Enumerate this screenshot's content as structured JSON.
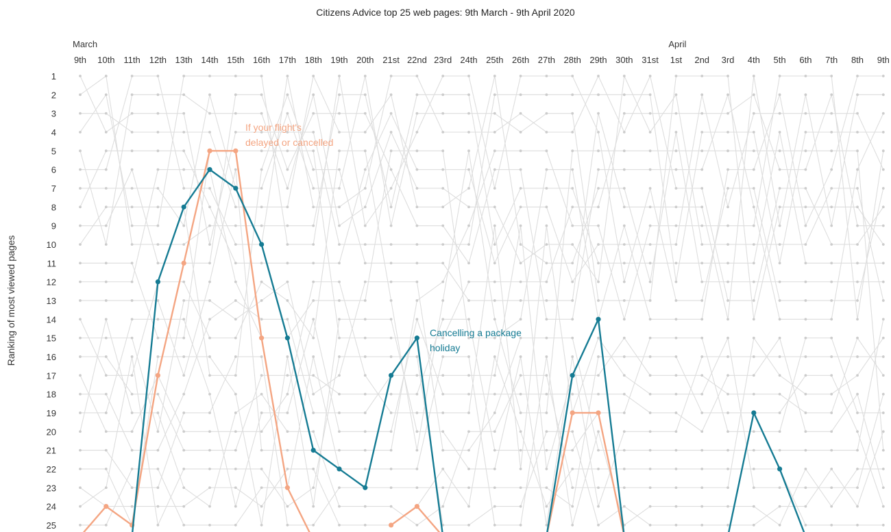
{
  "chart_data": {
    "type": "line",
    "title": "Citizens Advice top 25 web pages: 9th March - 9th April 2020",
    "ylabel": "Ranking of most viewed pages",
    "months": [
      {
        "label": "March",
        "start_index": 0
      },
      {
        "label": "April",
        "start_index": 23
      }
    ],
    "categories": [
      "9th",
      "10th",
      "11th",
      "12th",
      "13th",
      "14th",
      "15th",
      "16th",
      "17th",
      "18th",
      "19th",
      "20th",
      "21st",
      "22nd",
      "23rd",
      "24th",
      "25th",
      "26th",
      "27th",
      "28th",
      "29th",
      "30th",
      "31st",
      "1st",
      "2nd",
      "3rd",
      "4th",
      "5th",
      "6th",
      "7th",
      "8th",
      "9th"
    ],
    "y_ticks": [
      "1",
      "2",
      "3",
      "4",
      "5",
      "6",
      "7",
      "8",
      "9",
      "10",
      "11",
      "12",
      "13",
      "14",
      "15",
      "16",
      "17",
      "18",
      "19",
      "20",
      "21",
      "22",
      "23",
      "24",
      "25"
    ],
    "ylim": [
      1,
      25
    ],
    "y_inverted": true,
    "colors": {
      "background_line": "#dddddd",
      "background_point": "#cccccc",
      "flight": "#f4a582",
      "package": "#157b93"
    },
    "highlight_series": [
      {
        "name": "If your flight's delayed or cancelled",
        "label_lines": [
          "If your flight's",
          "delayed or cancelled"
        ],
        "color": "#f4a582",
        "values": [
          25.6,
          24,
          25,
          17,
          11,
          5,
          5,
          15,
          23,
          25.8,
          null,
          null,
          25,
          24,
          25.6,
          null,
          null,
          null,
          25.6,
          19,
          19,
          25.6,
          null,
          null,
          null,
          null,
          null,
          null,
          null,
          null,
          null,
          null
        ]
      },
      {
        "name": "Cancelling a package holiday",
        "label_lines": [
          "Cancelling a package",
          "holiday"
        ],
        "color": "#157b93",
        "values": [
          null,
          null,
          25.6,
          12,
          8,
          6,
          7,
          10,
          15,
          21,
          22,
          23,
          17,
          15,
          25.6,
          null,
          null,
          null,
          25.6,
          17,
          14,
          25.6,
          null,
          null,
          null,
          25.6,
          19,
          22,
          25.6,
          null,
          null,
          null
        ]
      }
    ]
  }
}
